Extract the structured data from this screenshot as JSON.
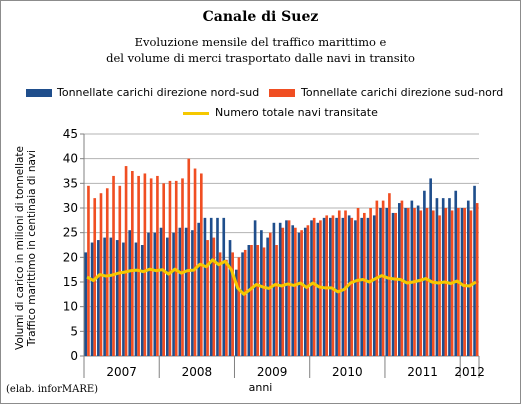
{
  "chart_data": {
    "type": "bar",
    "title": "Canale di Suez",
    "subtitle_lines": [
      "Evoluzione mensile del traffico marittimo e",
      "del volume di merci trasportato dalle navi in transito"
    ],
    "ylabel_lines": [
      "Volumi di carico in milioni di tonnellate",
      "Traffico marittimo in centinaia di navi"
    ],
    "xlabel": "anni",
    "ylim": [
      0,
      45
    ],
    "yticks": [
      0,
      5,
      10,
      15,
      20,
      25,
      30,
      35,
      40,
      45
    ],
    "year_labels": [
      "2007",
      "2008",
      "2009",
      "2010",
      "2011",
      "2012"
    ],
    "grid": true,
    "legend_position": "top",
    "credit": "(elab. inforMARE)",
    "series": [
      {
        "name": "Tonnellate carichi direzione nord-sud",
        "type": "bar",
        "color": "#1f4e8c",
        "values": [
          21,
          23,
          23.5,
          24,
          24,
          23.5,
          23,
          25.5,
          23,
          22.5,
          25,
          25,
          26,
          24,
          25,
          26,
          26,
          25.5,
          27,
          28,
          28,
          28,
          28,
          23.5,
          17.5,
          21,
          22.5,
          27.5,
          25.5,
          24,
          27,
          27,
          27.5,
          26.5,
          25,
          26,
          27.5,
          27,
          28,
          28,
          28,
          28,
          28.5,
          27.5,
          28,
          28,
          28.5,
          30,
          30,
          29,
          31,
          30,
          31.5,
          30.5,
          33.5,
          36,
          32,
          32,
          32,
          33.5,
          30,
          31.5,
          34.5
        ]
      },
      {
        "name": "Tonnellate carichi direzione sud-nord",
        "type": "bar",
        "color": "#f04e22",
        "values": [
          34.5,
          32,
          33,
          34,
          36.5,
          34.5,
          38.5,
          37.5,
          36.5,
          37,
          36,
          36.5,
          35,
          35.5,
          35.5,
          36,
          40,
          38,
          37,
          23.5,
          24,
          21,
          19.5,
          21,
          20,
          21.5,
          22.5,
          22.5,
          22,
          25,
          22.5,
          26,
          27.5,
          26,
          25.5,
          26.5,
          28,
          27.5,
          28.5,
          28.5,
          29.5,
          29.5,
          28,
          30,
          29,
          30,
          31.5,
          31.5,
          33,
          29,
          31.5,
          30,
          30,
          29.5,
          30,
          29.5,
          28.5,
          30,
          29.5,
          30,
          30,
          29.5,
          31
        ]
      },
      {
        "name": "Numero totale navi transitate",
        "type": "line",
        "color": "#f5c800",
        "values": [
          16,
          15.3,
          16.5,
          16.2,
          16.4,
          16.8,
          17,
          17.3,
          17.4,
          17.1,
          17.6,
          17.3,
          17.5,
          16.6,
          17.6,
          16.8,
          17.3,
          17.4,
          18.6,
          18.1,
          19.5,
          18.5,
          19.2,
          17.5,
          13.8,
          12.5,
          13.5,
          14.5,
          14,
          13.7,
          14.5,
          14.2,
          14.6,
          14.3,
          14.8,
          13.9,
          14.8,
          14,
          13.8,
          13.8,
          13,
          13.5,
          14.8,
          15.3,
          15.5,
          15,
          15.7,
          16.3,
          15.8,
          15.6,
          15.5,
          14.8,
          15,
          15.3,
          15.7,
          15,
          14.8,
          15,
          14.7,
          15.2,
          14.3,
          14.2,
          15
        ]
      }
    ]
  }
}
